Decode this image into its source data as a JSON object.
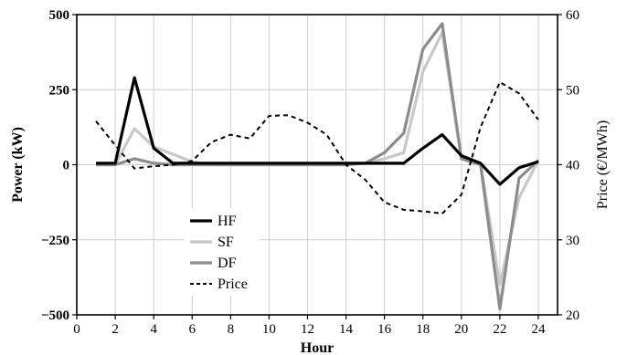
{
  "chart_data": {
    "type": "line",
    "xlabel": "Hour",
    "ylabel_left": "Power (kW)",
    "ylabel_right": "Price (€/MWh)",
    "xlim": [
      0,
      25
    ],
    "ylim_left": [
      -500,
      500
    ],
    "ylim_right": [
      20,
      60
    ],
    "x_ticks": [
      0,
      2,
      4,
      6,
      8,
      10,
      12,
      14,
      16,
      18,
      20,
      22,
      24
    ],
    "x_tick_labels": [
      "0",
      "2",
      "4",
      "6",
      "8",
      "10",
      "12",
      "14",
      "16",
      "18",
      "20",
      "22",
      "24"
    ],
    "y_left_ticks": [
      500,
      250,
      0,
      -250,
      -500
    ],
    "y_left_tick_labels": [
      "500",
      "250",
      "0",
      "−250",
      "−500"
    ],
    "y_right_ticks": [
      60,
      50,
      40,
      30,
      20
    ],
    "y_right_tick_labels": [
      "60",
      "50",
      "40",
      "30",
      "20"
    ],
    "grid": true,
    "legend_position": "lower-left",
    "x": [
      1,
      2,
      3,
      4,
      5,
      6,
      7,
      8,
      9,
      10,
      11,
      12,
      13,
      14,
      15,
      16,
      17,
      18,
      19,
      20,
      21,
      22,
      23,
      24
    ],
    "series": [
      {
        "name": "HF",
        "axis": "left",
        "color": "#000000",
        "dash": "solid",
        "values": [
          5,
          5,
          290,
          55,
          5,
          5,
          5,
          5,
          5,
          5,
          5,
          5,
          5,
          5,
          5,
          5,
          5,
          55,
          100,
          30,
          5,
          -65,
          -10,
          10
        ]
      },
      {
        "name": "SF",
        "axis": "left",
        "color": "#c8c8c8",
        "dash": "solid",
        "values": [
          0,
          0,
          120,
          60,
          35,
          10,
          0,
          0,
          0,
          0,
          0,
          0,
          0,
          0,
          5,
          20,
          40,
          310,
          440,
          20,
          5,
          -400,
          -110,
          15
        ]
      },
      {
        "name": "DF",
        "axis": "left",
        "color": "#8c8c8c",
        "dash": "solid",
        "values": [
          0,
          0,
          20,
          5,
          0,
          0,
          0,
          0,
          0,
          0,
          0,
          0,
          0,
          0,
          5,
          40,
          105,
          385,
          470,
          20,
          0,
          -480,
          -45,
          15
        ]
      },
      {
        "name": "Price",
        "axis": "right",
        "color": "#000000",
        "dash": "dashed",
        "values": [
          45.8,
          42.6,
          39.5,
          39.8,
          40.0,
          40.5,
          43.0,
          44.0,
          43.5,
          46.5,
          46.6,
          45.6,
          44.0,
          40.0,
          38.0,
          35.0,
          34.0,
          33.8,
          33.5,
          36.0,
          45.0,
          51.0,
          49.5,
          46.0
        ]
      }
    ]
  }
}
